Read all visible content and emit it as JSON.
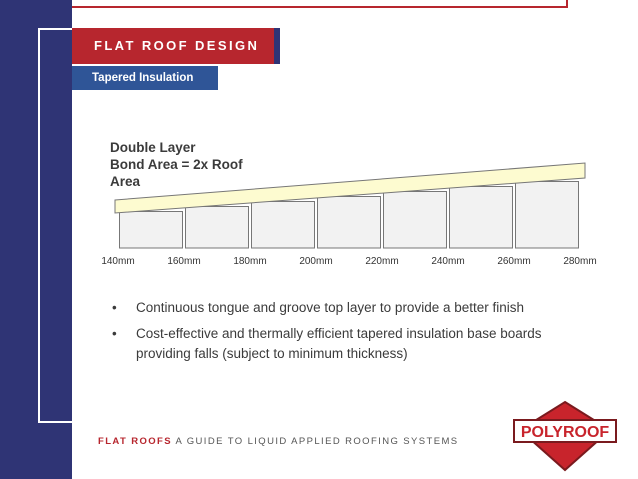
{
  "slide": {
    "title": "FLAT ROOF DESIGN",
    "subtitle": "Tapered Insulation"
  },
  "diagram": {
    "caption": "Double Layer\nBond Area = 2x Roof\nArea",
    "thickness_labels": [
      "140mm",
      "160mm",
      "180mm",
      "200mm",
      "220mm",
      "240mm",
      "260mm",
      "280mm"
    ],
    "top_layer_color": "#fdfbd0",
    "board_color": "#f2f2f2"
  },
  "bullets": [
    "Continuous tongue and groove top layer to provide a better finish",
    "Cost-effective and thermally efficient tapered insulation base boards providing falls (subject to minimum thickness)"
  ],
  "footer": {
    "accent": "FLAT ROOFS",
    "text": " A GUIDE TO LIQUID APPLIED ROOFING SYSTEMS"
  },
  "logo": {
    "text": "POLYROOF"
  },
  "colors": {
    "navy": "#2f3475",
    "red": "#b7262e",
    "blue": "#2f5597"
  }
}
